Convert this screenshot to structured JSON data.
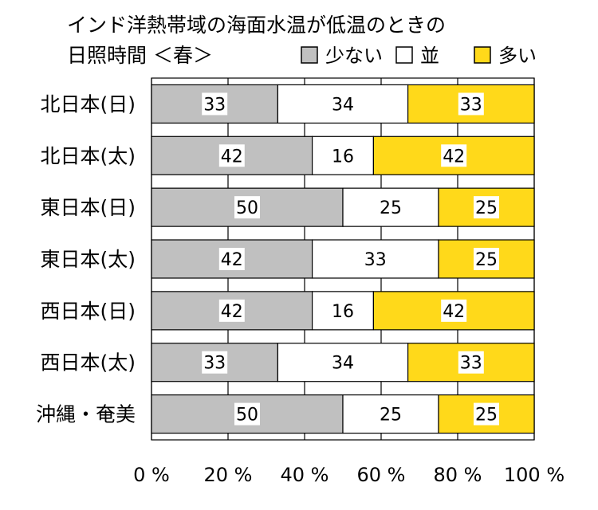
{
  "chart_data": {
    "type": "bar",
    "stacked": true,
    "orientation": "horizontal",
    "title_line1": "インド洋熱帯域の海面水温が低温のときの",
    "title_line2": "日照時間 ＜春＞",
    "categories": [
      "北日本(日)",
      "北日本(太)",
      "東日本(日)",
      "東日本(太)",
      "西日本(日)",
      "西日本(太)",
      "沖縄・奄美"
    ],
    "series": [
      {
        "name": "少ない",
        "color": "#c0c0c0",
        "values": [
          33,
          42,
          50,
          42,
          42,
          33,
          50
        ]
      },
      {
        "name": "並",
        "color": "#ffffff",
        "values": [
          34,
          16,
          25,
          33,
          16,
          34,
          25
        ]
      },
      {
        "name": "多い",
        "color": "#ffd91a",
        "values": [
          33,
          42,
          25,
          25,
          42,
          33,
          25
        ]
      }
    ],
    "x_ticks": [
      "0 %",
      "20 %",
      "40 %",
      "60 %",
      "80 %",
      "100 %"
    ],
    "xlim": [
      0,
      100
    ],
    "grid": true,
    "legend_position": "top-right"
  }
}
